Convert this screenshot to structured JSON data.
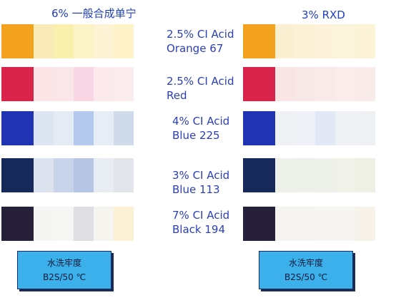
{
  "headers": {
    "left": "6% 一般合成单宁",
    "right": "3% RXD"
  },
  "rows": [
    {
      "label_line1": "2.5% CI Acid",
      "label_line2": "Orange 67",
      "left_colors": [
        "#f2a21f",
        "#f9ebb8",
        "#faf0ae",
        "#fbf2c7",
        "#fdf4d6",
        "#fdf2c8"
      ],
      "right_colors": [
        "#f2a21f",
        "#fbefd2",
        "#fbf1d4",
        "#fcf3da",
        "#fdf4dc",
        "#fdf3d8"
      ]
    },
    {
      "label_line1": "2.5% CI Acid",
      "label_line2": "Red",
      "left_colors": [
        "#d8234a",
        "#fbe4e6",
        "#fae6e8",
        "#f9d6e4",
        "#fbe9ec",
        "#faebec"
      ],
      "right_colors": [
        "#d8234a",
        "#f8e5e4",
        "#f9e8e8",
        "#f9eaea",
        "#faeceb",
        "#f9ebea"
      ]
    },
    {
      "label_line1": "4% CI Acid",
      "label_line2": "Blue 225",
      "left_colors": [
        "#1f33b3",
        "#dde5f3",
        "#e4ebf5",
        "#b5c8ee",
        "#e6edf6",
        "#cfdbe8"
      ],
      "right_colors": [
        "#1f33b3",
        "#eef0f3",
        "#eef1f5",
        "#e2e8f6",
        "#eff2f5",
        "#eef1f4"
      ]
    },
    {
      "label_line1": "3% CI Acid",
      "label_line2": "Blue 113",
      "left_colors": [
        "#16295a",
        "#dce3ef",
        "#c9d4ea",
        "#b6c5e4",
        "#e8ecf3",
        "#e2e6ea"
      ],
      "right_colors": [
        "#16295a",
        "#eef0ea",
        "#edf0e8",
        "#eef0ea",
        "#f0f2ea",
        "#eef0e6"
      ]
    },
    {
      "label_line1": "7% CI Acid",
      "label_line2": "Black 194",
      "left_colors": [
        "#26203a",
        "#f5f5f3",
        "#f6f6f4",
        "#dfdfe3",
        "#f6f4ee",
        "#fbefd4"
      ],
      "right_colors": [
        "#26203a",
        "#f6f4f1",
        "#f6f4f0",
        "#f6f5f1",
        "#f7f5f1",
        "#f7f2ea"
      ]
    }
  ],
  "buttons": [
    {
      "line1": "水洗牢度",
      "line2": "B2S/50 ℃"
    },
    {
      "line1": "水洗牢度",
      "line2": "B2S/50 ℃"
    }
  ]
}
